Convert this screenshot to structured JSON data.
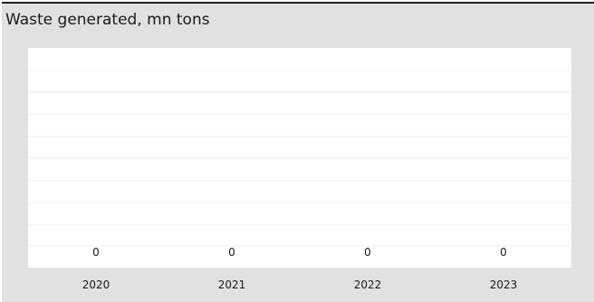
{
  "chart_data": {
    "type": "bar",
    "title": "Waste generated, mn tons",
    "xlabel": "",
    "ylabel": "",
    "categories": [
      "2020",
      "2021",
      "2022",
      "2023"
    ],
    "values": [
      0,
      0,
      0,
      0
    ],
    "data_labels": [
      "0",
      "0",
      "0",
      "0"
    ],
    "grid": true,
    "legend": "none"
  },
  "colors": {
    "panel_background": "#e1e1e1",
    "plot_background": "#ffffff",
    "gridline": "#ececec",
    "text": "#1a1a1a",
    "top_rule": "#1f1f1f",
    "bar": "#4a7fb5"
  }
}
